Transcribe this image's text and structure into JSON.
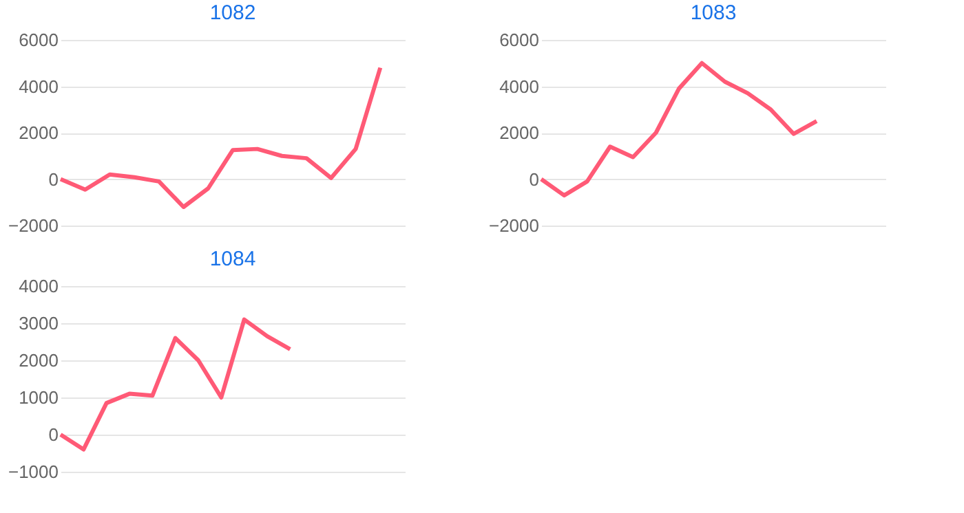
{
  "chart_data": [
    {
      "type": "line",
      "title": "1082",
      "categories": [
        null,
        null,
        null,
        null,
        null,
        null,
        null,
        null,
        null,
        null,
        null,
        null,
        null,
        null,
        null
      ],
      "series": [
        {
          "color": "#ff5a76",
          "values": [
            0,
            -450,
            200,
            80,
            -100,
            -1200,
            -400,
            1250,
            1300,
            1000,
            900,
            50,
            1300,
            4800,
            null
          ]
        }
      ],
      "ylim": [
        -2000,
        6000
      ],
      "yticks": [
        -2000,
        0,
        2000,
        4000,
        6000
      ],
      "grid": "y",
      "tick_labels": "y",
      "marker": "none",
      "line_style": "solid"
    },
    {
      "type": "line",
      "title": "1083",
      "categories": [
        null,
        null,
        null,
        null,
        null,
        null,
        null,
        null,
        null,
        null,
        null,
        null,
        null,
        null,
        null,
        null
      ],
      "series": [
        {
          "color": "#ff5a76",
          "values": [
            0,
            -700,
            -100,
            1400,
            950,
            2000,
            3900,
            5000,
            4200,
            3700,
            3000,
            1950,
            2500,
            null,
            null,
            null
          ]
        }
      ],
      "ylim": [
        -2000,
        6000
      ],
      "yticks": [
        -2000,
        0,
        2000,
        4000,
        6000
      ],
      "grid": "y",
      "tick_labels": "y",
      "marker": "none",
      "line_style": "solid"
    },
    {
      "type": "line",
      "title": "1084",
      "categories": [
        null,
        null,
        null,
        null,
        null,
        null,
        null,
        null,
        null,
        null,
        null,
        null,
        null,
        null,
        null,
        null
      ],
      "series": [
        {
          "color": "#ff5a76",
          "values": [
            0,
            -400,
            850,
            1100,
            1050,
            2600,
            2000,
            1000,
            3100,
            2650,
            2300,
            null,
            null,
            null,
            null,
            null
          ]
        }
      ],
      "ylim": [
        -1000,
        4000
      ],
      "yticks": [
        -1000,
        0,
        1000,
        2000,
        3000,
        4000
      ],
      "grid": "y",
      "tick_labels": "y",
      "marker": "none",
      "line_style": "solid"
    }
  ]
}
